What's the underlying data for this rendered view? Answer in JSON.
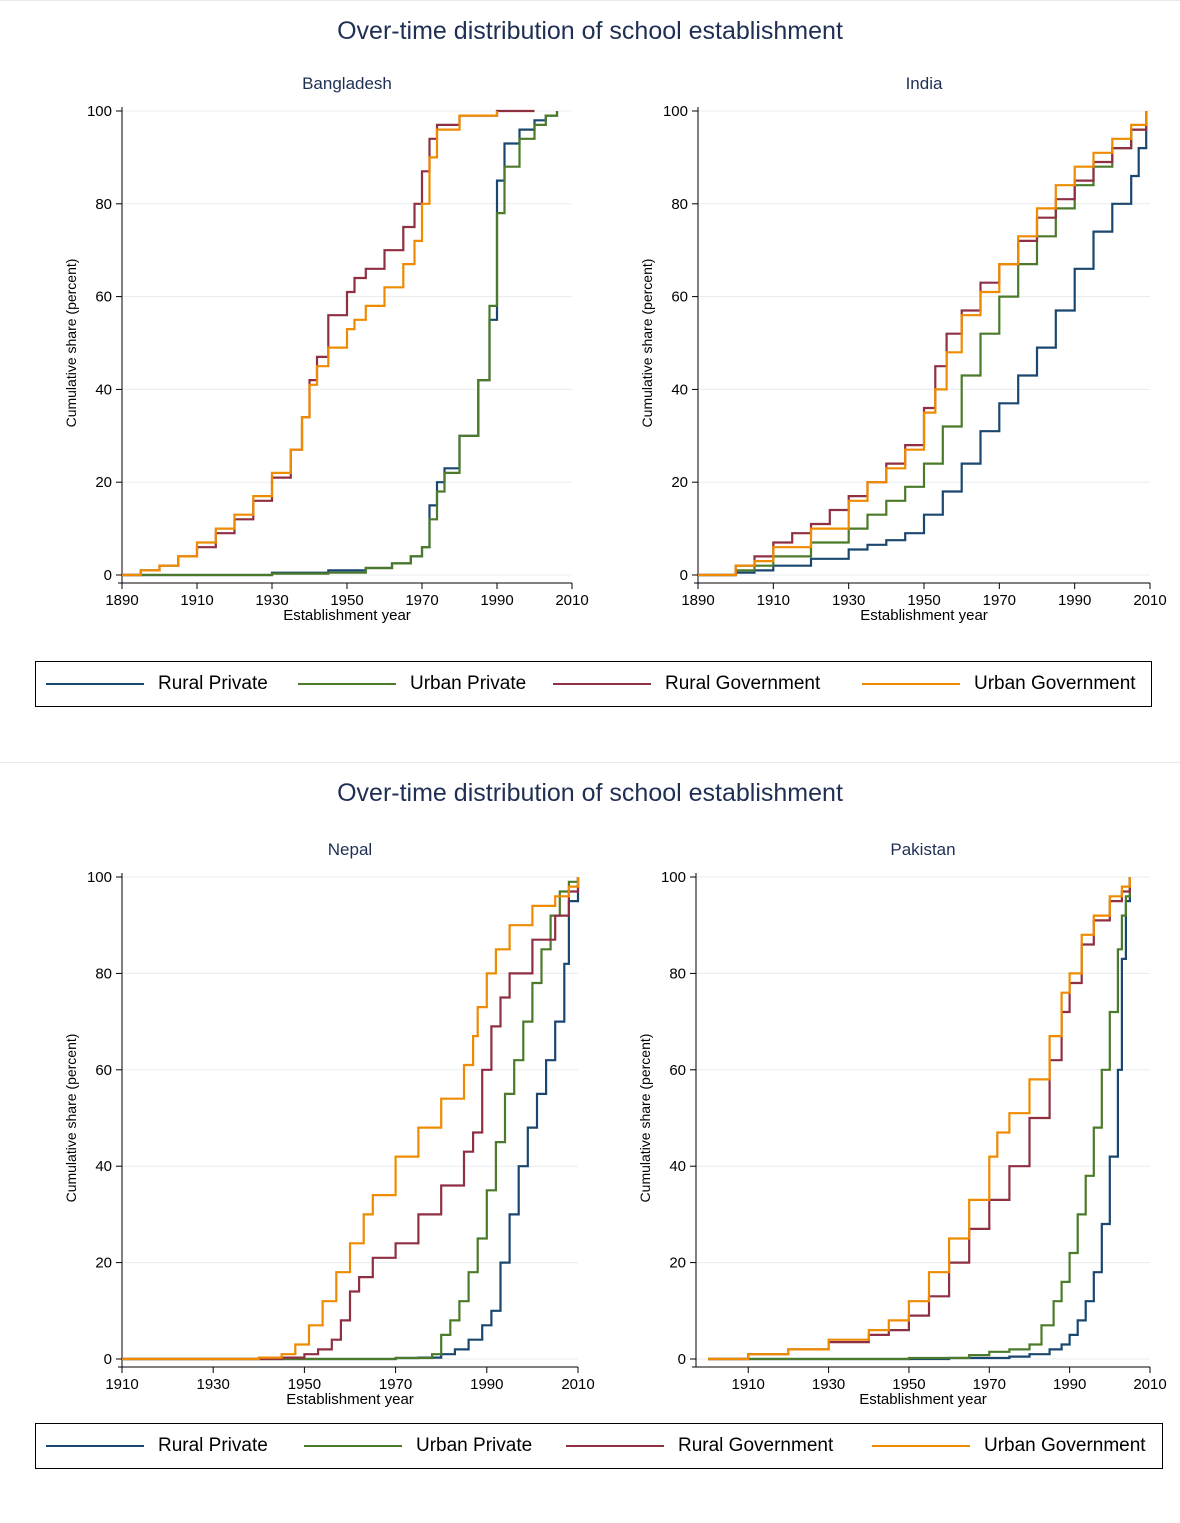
{
  "colors": {
    "rural_private": "#1a476f",
    "urban_private": "#4b7a2a",
    "rural_government": "#8f2f42",
    "urban_government": "#ee8b00",
    "title": "#1f2f54",
    "grid": "#e8ecef"
  },
  "figures": [
    {
      "title": "Over-time distribution of school establishment",
      "legend": [
        "Rural Private",
        "Urban Private",
        "Rural Government",
        "Urban Government"
      ]
    },
    {
      "title": "Over-time distribution of school establishment",
      "legend": [
        "Rural Private",
        "Urban Private",
        "Rural Government",
        "Urban Government"
      ]
    }
  ],
  "chart_data": [
    {
      "type": "line",
      "title": "Bangladesh",
      "xlabel": "Establishment year",
      "ylabel": "Cumulative share (percent)",
      "xlim": [
        1890,
        2010
      ],
      "ylim": [
        0,
        100
      ],
      "xticks": [
        1890,
        1910,
        1930,
        1950,
        1970,
        1990,
        2010
      ],
      "yticks": [
        0,
        20,
        40,
        60,
        80,
        100
      ],
      "series": [
        {
          "name": "Rural Private",
          "x": [
            1890,
            1910,
            1930,
            1945,
            1955,
            1962,
            1967,
            1970,
            1972,
            1974,
            1976,
            1980,
            1985,
            1988,
            1990,
            1992,
            1996,
            2000,
            2003,
            2006
          ],
          "y": [
            0,
            0,
            0.5,
            1,
            1.5,
            2.5,
            4,
            6,
            15,
            20,
            23,
            30,
            42,
            55,
            85,
            93,
            96,
            98,
            99,
            100
          ]
        },
        {
          "name": "Urban Private",
          "x": [
            1890,
            1910,
            1930,
            1945,
            1955,
            1962,
            1967,
            1970,
            1972,
            1974,
            1976,
            1980,
            1985,
            1988,
            1990,
            1992,
            1996,
            2000,
            2003,
            2006
          ],
          "y": [
            0,
            0,
            0.3,
            0.5,
            1.5,
            2.5,
            4,
            6,
            12,
            18,
            22,
            30,
            42,
            58,
            78,
            88,
            94,
            97,
            99,
            100
          ]
        },
        {
          "name": "Rural Government",
          "x": [
            1890,
            1895,
            1900,
            1905,
            1910,
            1915,
            1920,
            1925,
            1930,
            1935,
            1938,
            1940,
            1942,
            1945,
            1950,
            1952,
            1955,
            1960,
            1965,
            1968,
            1970,
            1972,
            1974,
            1980,
            1990,
            2000
          ],
          "y": [
            0,
            1,
            2,
            4,
            6,
            9,
            12,
            16,
            21,
            27,
            34,
            42,
            47,
            56,
            61,
            64,
            66,
            70,
            75,
            80,
            87,
            94,
            97,
            99,
            100,
            100
          ]
        },
        {
          "name": "Urban Government",
          "x": [
            1890,
            1895,
            1900,
            1905,
            1910,
            1915,
            1920,
            1925,
            1930,
            1935,
            1938,
            1940,
            1942,
            1945,
            1950,
            1952,
            1955,
            1960,
            1965,
            1968,
            1970,
            1972,
            1974,
            1980,
            1990
          ],
          "y": [
            0,
            1,
            2,
            4,
            7,
            10,
            13,
            17,
            22,
            27,
            34,
            41,
            45,
            49,
            53,
            55,
            58,
            62,
            67,
            72,
            80,
            90,
            96,
            99,
            100
          ]
        }
      ]
    },
    {
      "type": "line",
      "title": "India",
      "xlabel": "Establishment year",
      "ylabel": "Cumulative share (percent)",
      "xlim": [
        1890,
        2010
      ],
      "ylim": [
        0,
        100
      ],
      "xticks": [
        1890,
        1910,
        1930,
        1950,
        1970,
        1990,
        2010
      ],
      "yticks": [
        0,
        20,
        40,
        60,
        80,
        100
      ],
      "series": [
        {
          "name": "Rural Private",
          "x": [
            1890,
            1900,
            1905,
            1910,
            1920,
            1930,
            1935,
            1940,
            1945,
            1950,
            1955,
            1960,
            1965,
            1970,
            1975,
            1980,
            1985,
            1990,
            1995,
            2000,
            2005,
            2007,
            2009
          ],
          "y": [
            0,
            0.5,
            1,
            2,
            3.5,
            5.5,
            6.5,
            7.5,
            9,
            13,
            18,
            24,
            31,
            37,
            43,
            49,
            57,
            66,
            74,
            80,
            86,
            92,
            100
          ]
        },
        {
          "name": "Urban Private",
          "x": [
            1890,
            1900,
            1905,
            1910,
            1920,
            1930,
            1935,
            1940,
            1945,
            1950,
            1955,
            1960,
            1965,
            1970,
            1975,
            1980,
            1985,
            1990,
            1995,
            2000,
            2005,
            2009
          ],
          "y": [
            0,
            1,
            2,
            4,
            7,
            10,
            13,
            16,
            19,
            24,
            32,
            43,
            52,
            60,
            67,
            73,
            79,
            84,
            88,
            92,
            96,
            100
          ]
        },
        {
          "name": "Rural Government",
          "x": [
            1890,
            1900,
            1905,
            1910,
            1915,
            1920,
            1925,
            1930,
            1935,
            1940,
            1945,
            1950,
            1953,
            1956,
            1960,
            1965,
            1970,
            1975,
            1980,
            1985,
            1990,
            1995,
            2000,
            2005,
            2009
          ],
          "y": [
            0,
            2,
            4,
            7,
            9,
            11,
            14,
            17,
            20,
            24,
            28,
            36,
            45,
            52,
            57,
            63,
            67,
            72,
            77,
            81,
            85,
            89,
            92,
            96,
            100
          ]
        },
        {
          "name": "Urban Government",
          "x": [
            1890,
            1900,
            1905,
            1910,
            1920,
            1930,
            1935,
            1940,
            1945,
            1950,
            1953,
            1956,
            1960,
            1965,
            1970,
            1975,
            1980,
            1985,
            1990,
            1995,
            2000,
            2005,
            2009
          ],
          "y": [
            0,
            2,
            3,
            6,
            10,
            16,
            20,
            23,
            27,
            35,
            40,
            48,
            56,
            61,
            67,
            73,
            79,
            84,
            88,
            91,
            94,
            97,
            100
          ]
        }
      ]
    },
    {
      "type": "line",
      "title": "Nepal",
      "xlabel": "Establishment year",
      "ylabel": "Cumulative share (percent)",
      "xlim": [
        1910,
        2010
      ],
      "ylim": [
        0,
        100
      ],
      "xticks": [
        1910,
        1930,
        1950,
        1970,
        1990,
        2010
      ],
      "yticks": [
        0,
        20,
        40,
        60,
        80,
        100
      ],
      "series": [
        {
          "name": "Rural Private",
          "x": [
            1910,
            1950,
            1970,
            1975,
            1980,
            1983,
            1986,
            1989,
            1991,
            1993,
            1995,
            1997,
            1999,
            2001,
            2003,
            2005,
            2007,
            2008,
            2010
          ],
          "y": [
            0,
            0,
            0.2,
            0.3,
            1,
            2,
            4,
            7,
            10,
            20,
            30,
            40,
            48,
            55,
            62,
            70,
            82,
            95,
            100
          ]
        },
        {
          "name": "Urban Private",
          "x": [
            1910,
            1950,
            1970,
            1978,
            1980,
            1982,
            1984,
            1986,
            1988,
            1990,
            1992,
            1994,
            1996,
            1998,
            2000,
            2002,
            2004,
            2006,
            2008,
            2010
          ],
          "y": [
            0,
            0,
            0.2,
            1,
            5,
            8,
            12,
            18,
            25,
            35,
            45,
            55,
            62,
            70,
            78,
            85,
            92,
            97,
            99,
            100
          ]
        },
        {
          "name": "Rural Government",
          "x": [
            1910,
            1940,
            1945,
            1950,
            1953,
            1956,
            1958,
            1960,
            1962,
            1965,
            1970,
            1975,
            1980,
            1985,
            1987,
            1989,
            1991,
            1993,
            1995,
            2000,
            2005,
            2008,
            2010
          ],
          "y": [
            0,
            0,
            0.3,
            1,
            2,
            4,
            8,
            14,
            17,
            21,
            24,
            30,
            36,
            43,
            47,
            60,
            69,
            75,
            80,
            87,
            92,
            97,
            100
          ]
        },
        {
          "name": "Urban Government",
          "x": [
            1910,
            1940,
            1945,
            1948,
            1951,
            1954,
            1957,
            1960,
            1963,
            1965,
            1970,
            1975,
            1980,
            1985,
            1987,
            1988,
            1990,
            1992,
            1995,
            2000,
            2005,
            2008,
            2010
          ],
          "y": [
            0,
            0.3,
            1,
            3,
            7,
            12,
            18,
            24,
            30,
            34,
            42,
            48,
            54,
            61,
            67,
            73,
            80,
            85,
            90,
            94,
            96,
            98,
            100
          ]
        }
      ]
    },
    {
      "type": "line",
      "title": "Pakistan",
      "xlabel": "Establishment year",
      "ylabel": "Cumulative share (percent)",
      "xlim": [
        1897,
        2010
      ],
      "ylim": [
        0,
        100
      ],
      "xticks": [
        1910,
        1930,
        1950,
        1970,
        1990,
        2010
      ],
      "yticks": [
        0,
        20,
        40,
        60,
        80,
        100
      ],
      "series": [
        {
          "name": "Rural Private",
          "x": [
            1900,
            1960,
            1975,
            1980,
            1985,
            1988,
            1990,
            1992,
            1994,
            1996,
            1998,
            2000,
            2002,
            2003,
            2004,
            2005
          ],
          "y": [
            0,
            0.2,
            0.5,
            1,
            2,
            3,
            5,
            8,
            12,
            18,
            28,
            42,
            60,
            83,
            95,
            100
          ]
        },
        {
          "name": "Urban Private",
          "x": [
            1900,
            1950,
            1965,
            1970,
            1975,
            1980,
            1983,
            1986,
            1988,
            1990,
            1992,
            1994,
            1996,
            1998,
            2000,
            2002,
            2003,
            2004,
            2005
          ],
          "y": [
            0,
            0.2,
            0.8,
            1.5,
            2,
            3,
            7,
            12,
            16,
            22,
            30,
            38,
            48,
            60,
            72,
            85,
            92,
            96,
            100
          ]
        },
        {
          "name": "Rural Government",
          "x": [
            1900,
            1910,
            1920,
            1930,
            1940,
            1945,
            1950,
            1955,
            1960,
            1965,
            1970,
            1975,
            1980,
            1985,
            1988,
            1990,
            1993,
            1996,
            2000,
            2003,
            2005
          ],
          "y": [
            0,
            1,
            2,
            3.5,
            5,
            6,
            9,
            13,
            20,
            27,
            33,
            40,
            50,
            62,
            72,
            78,
            86,
            91,
            95,
            97,
            100
          ]
        },
        {
          "name": "Urban Government",
          "x": [
            1900,
            1910,
            1920,
            1930,
            1940,
            1945,
            1950,
            1955,
            1960,
            1965,
            1970,
            1972,
            1975,
            1980,
            1985,
            1988,
            1990,
            1993,
            1996,
            2000,
            2003,
            2005
          ],
          "y": [
            0,
            1,
            2,
            4,
            6,
            8,
            12,
            18,
            25,
            33,
            42,
            47,
            51,
            58,
            67,
            76,
            80,
            88,
            92,
            96,
            98,
            100
          ]
        }
      ]
    }
  ]
}
